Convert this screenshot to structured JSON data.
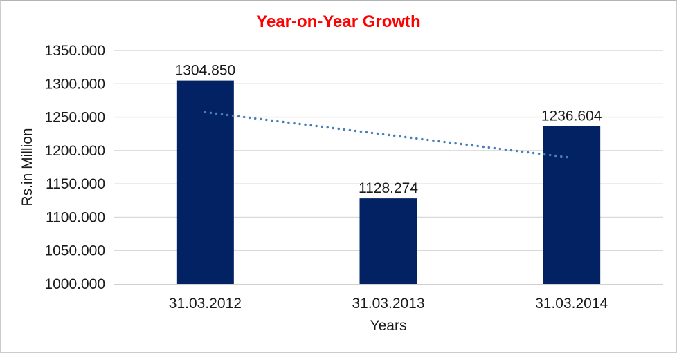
{
  "chart_data": {
    "type": "bar",
    "title": "Year-on-Year Growth",
    "xlabel": "Years",
    "ylabel": "Rs.in Million",
    "categories": [
      "31.03.2012",
      "31.03.2013",
      "31.03.2014"
    ],
    "values": [
      1304.85,
      1128.274,
      1236.604
    ],
    "data_labels": [
      "1304.850",
      "1128.274",
      "1236.604"
    ],
    "ylim": [
      1000,
      1350
    ],
    "ytick_step": 50,
    "ytick_labels": [
      "1000.000",
      "1050.000",
      "1100.000",
      "1150.000",
      "1200.000",
      "1250.000",
      "1300.000",
      "1350.000"
    ],
    "grid": true,
    "legend": false,
    "trendline": {
      "type": "linear",
      "style": "dotted",
      "trend_values": [
        1257.37,
        1189.12
      ]
    },
    "colors": {
      "bar": "#032263",
      "title": "#fe0000",
      "trendline": "#4a7ebb",
      "gridline": "#d9d9d9",
      "axis_line": "#c0c0c0",
      "text": "#1a1a1a"
    }
  }
}
